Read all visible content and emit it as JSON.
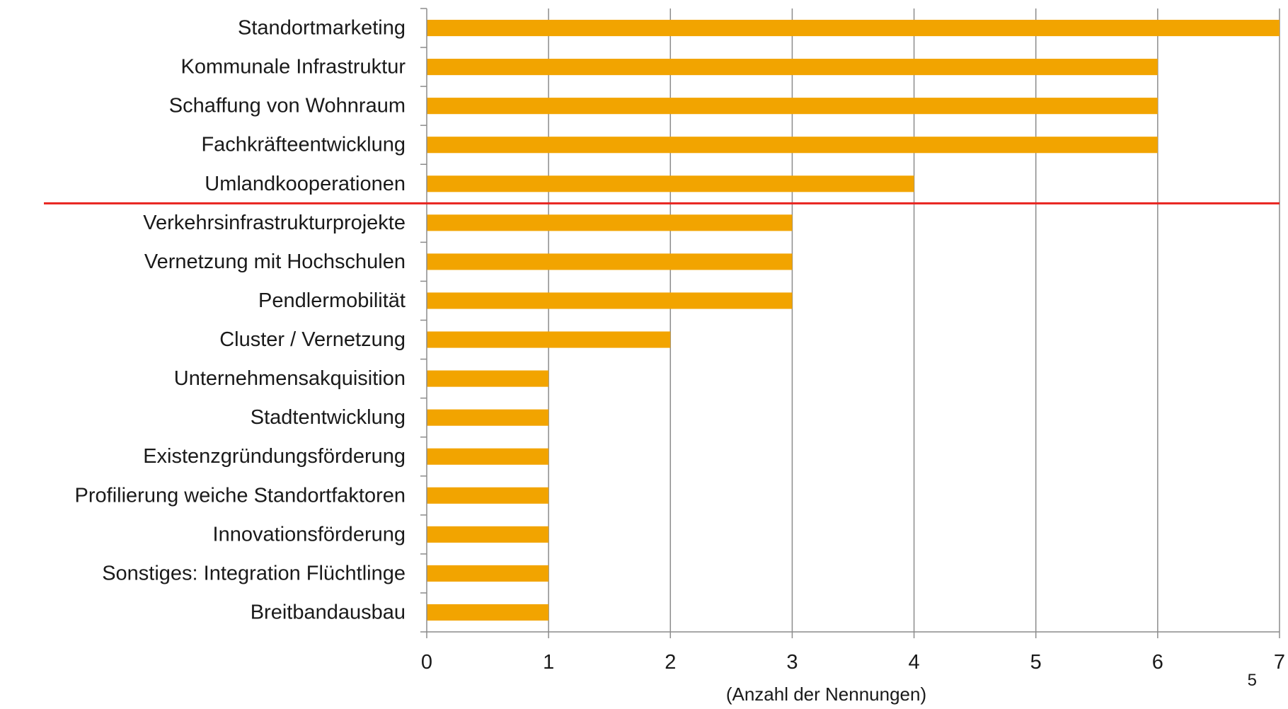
{
  "chart_data": {
    "type": "bar",
    "orientation": "horizontal",
    "categories": [
      "Standortmarketing",
      "Kommunale Infrastruktur",
      "Schaffung von Wohnraum",
      "Fachkräfteentwicklung",
      "Umlandkooperationen",
      "Verkehrsinfrastrukturprojekte",
      "Vernetzung mit Hochschulen",
      "Pendlermobilität",
      "Cluster / Vernetzung",
      "Unternehmensakquisition",
      "Stadtentwicklung",
      "Existenzgründungsförderung",
      "Profilierung weiche Standortfaktoren",
      "Innovationsförderung",
      "Sonstiges:   Integration Flüchtlinge",
      "Breitbandausbau"
    ],
    "values": [
      7,
      6,
      6,
      6,
      4,
      3,
      3,
      3,
      2,
      1,
      1,
      1,
      1,
      1,
      1,
      1
    ],
    "xlabel": "(Anzahl der Nennungen)",
    "xlim": [
      0,
      7
    ],
    "xticks": [
      "0",
      "1",
      "2",
      "3",
      "4",
      "5",
      "6",
      "7"
    ],
    "grid": "vertical",
    "bar_color": "#F2A400",
    "separator_color": "#E8231E",
    "separator_after_index": 4
  },
  "page_number": "5"
}
